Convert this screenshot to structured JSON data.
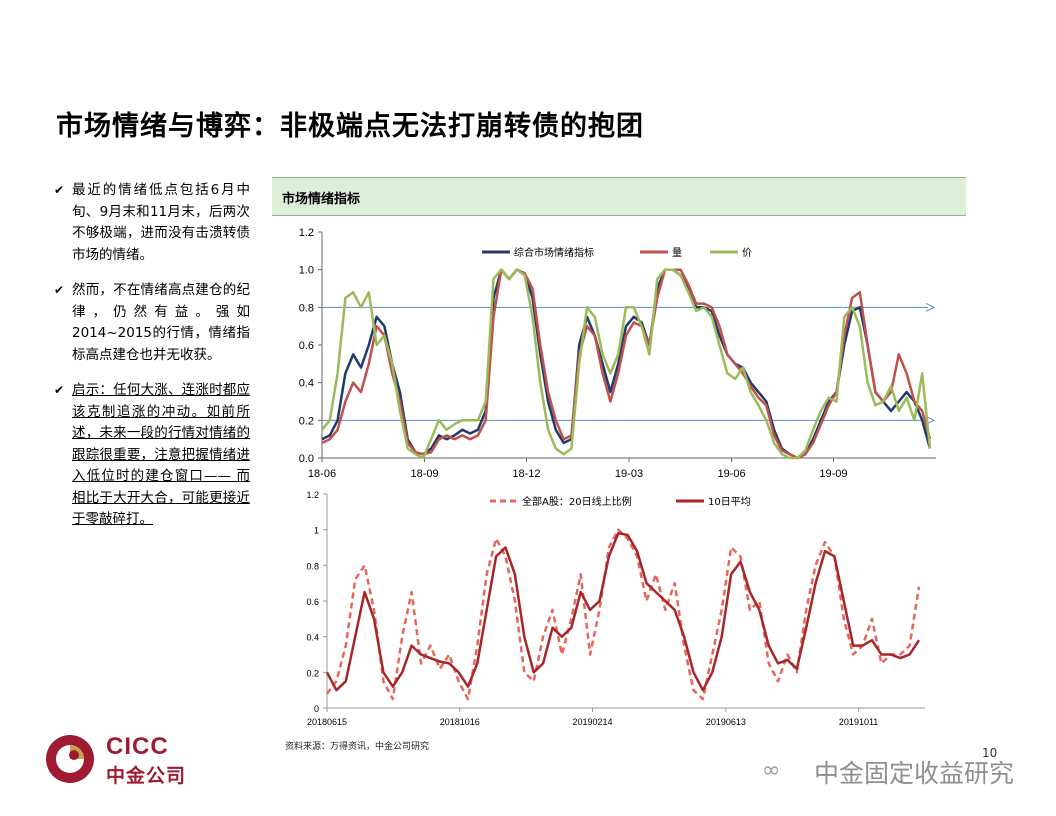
{
  "page": {
    "title": "市场情绪与博弈：非极端点无法打崩转债的抱团",
    "page_number": "10",
    "source": "资料来源：万得资讯，中金公司研究",
    "logo": {
      "en": "CICC",
      "cn": "中金公司"
    },
    "watermark": "中金固定收益研究",
    "panel_title": "市场情绪指标"
  },
  "bullets": [
    {
      "text": "最近的情绪低点包括6月中旬、9月末和11月末，后两次不够极端，进而没有击溃转债市场的情绪。"
    },
    {
      "text": "然而，不在情绪高点建仓的纪律，仍然有益。强如2014~2015的行情，情绪指标高点建仓也并无收获。"
    },
    {
      "text": "启示：任何大涨、连涨时都应该克制追涨的冲动。如前所述，未来一段的行情对情绪的跟踪很重要，注意把握情绪进入低位时的建仓窗口—— 而相比于大开大合，可能更接近于零敲碎打。"
    }
  ],
  "chart_data": [
    {
      "type": "line",
      "ylim": [
        0,
        1.2
      ],
      "yticks": [
        "0.0",
        "0.2",
        "0.4",
        "0.6",
        "0.8",
        "1.0",
        "1.2"
      ],
      "xticks": [
        "18-06",
        "18-09",
        "18-12",
        "19-03",
        "19-06",
        "19-09"
      ],
      "reference_lines": [
        0.8,
        0.2
      ],
      "series": [
        {
          "name": "综合市场情绪指标",
          "color": "#1f3b6e",
          "values": [
            0.1,
            0.12,
            0.2,
            0.45,
            0.55,
            0.48,
            0.6,
            0.75,
            0.7,
            0.5,
            0.35,
            0.1,
            0.03,
            0.02,
            0.05,
            0.12,
            0.1,
            0.12,
            0.15,
            0.13,
            0.15,
            0.25,
            0.85,
            1.0,
            0.95,
            1.0,
            0.98,
            0.85,
            0.55,
            0.3,
            0.15,
            0.08,
            0.1,
            0.6,
            0.75,
            0.65,
            0.5,
            0.35,
            0.5,
            0.7,
            0.75,
            0.72,
            0.6,
            0.9,
            1.0,
            1.0,
            0.97,
            0.9,
            0.8,
            0.8,
            0.78,
            0.65,
            0.55,
            0.5,
            0.48,
            0.4,
            0.35,
            0.3,
            0.15,
            0.05,
            0.02,
            0.0,
            0.02,
            0.1,
            0.2,
            0.3,
            0.35,
            0.6,
            0.78,
            0.8,
            0.6,
            0.35,
            0.3,
            0.25,
            0.3,
            0.35,
            0.3,
            0.2,
            0.05
          ]
        },
        {
          "name": "量",
          "color": "#c0504d",
          "values": [
            0.08,
            0.1,
            0.15,
            0.3,
            0.4,
            0.35,
            0.5,
            0.7,
            0.65,
            0.45,
            0.3,
            0.08,
            0.03,
            0.02,
            0.03,
            0.1,
            0.12,
            0.1,
            0.12,
            0.1,
            0.12,
            0.2,
            0.75,
            1.0,
            0.95,
            1.0,
            0.98,
            0.9,
            0.6,
            0.35,
            0.2,
            0.1,
            0.12,
            0.55,
            0.7,
            0.65,
            0.45,
            0.3,
            0.45,
            0.65,
            0.72,
            0.7,
            0.6,
            0.85,
            1.0,
            1.0,
            1.0,
            0.92,
            0.82,
            0.82,
            0.8,
            0.7,
            0.55,
            0.5,
            0.45,
            0.38,
            0.32,
            0.28,
            0.12,
            0.04,
            0.02,
            0.0,
            0.02,
            0.08,
            0.18,
            0.28,
            0.35,
            0.65,
            0.85,
            0.88,
            0.6,
            0.35,
            0.3,
            0.35,
            0.55,
            0.45,
            0.3,
            0.25,
            0.1
          ]
        },
        {
          "name": "价",
          "color": "#9bbb59",
          "values": [
            0.15,
            0.2,
            0.45,
            0.85,
            0.88,
            0.8,
            0.88,
            0.6,
            0.65,
            0.5,
            0.25,
            0.05,
            0.02,
            0.0,
            0.1,
            0.2,
            0.15,
            0.18,
            0.2,
            0.2,
            0.2,
            0.3,
            0.95,
            1.0,
            0.95,
            1.0,
            0.97,
            0.75,
            0.4,
            0.15,
            0.05,
            0.02,
            0.05,
            0.5,
            0.8,
            0.75,
            0.55,
            0.45,
            0.55,
            0.8,
            0.8,
            0.7,
            0.55,
            0.95,
            1.0,
            1.0,
            0.97,
            0.88,
            0.78,
            0.8,
            0.75,
            0.6,
            0.45,
            0.42,
            0.48,
            0.35,
            0.28,
            0.2,
            0.08,
            0.02,
            0.0,
            0.0,
            0.04,
            0.15,
            0.25,
            0.32,
            0.3,
            0.75,
            0.8,
            0.7,
            0.4,
            0.28,
            0.3,
            0.38,
            0.25,
            0.32,
            0.2,
            0.45,
            0.05
          ]
        }
      ]
    },
    {
      "type": "line",
      "ylim": [
        0,
        1.2
      ],
      "yticks": [
        "0",
        "0.2",
        "0.4",
        "0.6",
        "0.8",
        "1",
        "1.2"
      ],
      "xticks": [
        "20180615",
        "20181016",
        "20190214",
        "20190613",
        "20191011"
      ],
      "series": [
        {
          "name": "全部A股：20日线上比例",
          "color": "#e8655a",
          "dashed": true,
          "values": [
            0.08,
            0.15,
            0.35,
            0.72,
            0.8,
            0.55,
            0.15,
            0.05,
            0.4,
            0.65,
            0.25,
            0.35,
            0.22,
            0.3,
            0.15,
            0.05,
            0.35,
            0.75,
            0.95,
            0.85,
            0.6,
            0.2,
            0.15,
            0.4,
            0.55,
            0.3,
            0.5,
            0.75,
            0.3,
            0.55,
            0.9,
            1.0,
            0.95,
            0.85,
            0.6,
            0.75,
            0.55,
            0.7,
            0.35,
            0.1,
            0.05,
            0.3,
            0.55,
            0.9,
            0.85,
            0.55,
            0.6,
            0.25,
            0.15,
            0.3,
            0.2,
            0.55,
            0.8,
            0.93,
            0.85,
            0.5,
            0.3,
            0.35,
            0.5,
            0.25,
            0.3,
            0.3,
            0.35,
            0.68
          ]
        },
        {
          "name": "10日平均",
          "color": "#a6262a",
          "dashed": false,
          "values": [
            0.2,
            0.1,
            0.15,
            0.4,
            0.65,
            0.5,
            0.2,
            0.12,
            0.2,
            0.35,
            0.3,
            0.28,
            0.26,
            0.25,
            0.2,
            0.12,
            0.25,
            0.55,
            0.85,
            0.9,
            0.75,
            0.4,
            0.2,
            0.25,
            0.45,
            0.4,
            0.45,
            0.65,
            0.55,
            0.6,
            0.85,
            0.98,
            0.97,
            0.88,
            0.7,
            0.65,
            0.6,
            0.55,
            0.4,
            0.2,
            0.1,
            0.2,
            0.4,
            0.75,
            0.82,
            0.65,
            0.55,
            0.35,
            0.25,
            0.27,
            0.22,
            0.45,
            0.7,
            0.88,
            0.85,
            0.6,
            0.35,
            0.35,
            0.38,
            0.3,
            0.3,
            0.28,
            0.3,
            0.38
          ]
        }
      ]
    }
  ]
}
